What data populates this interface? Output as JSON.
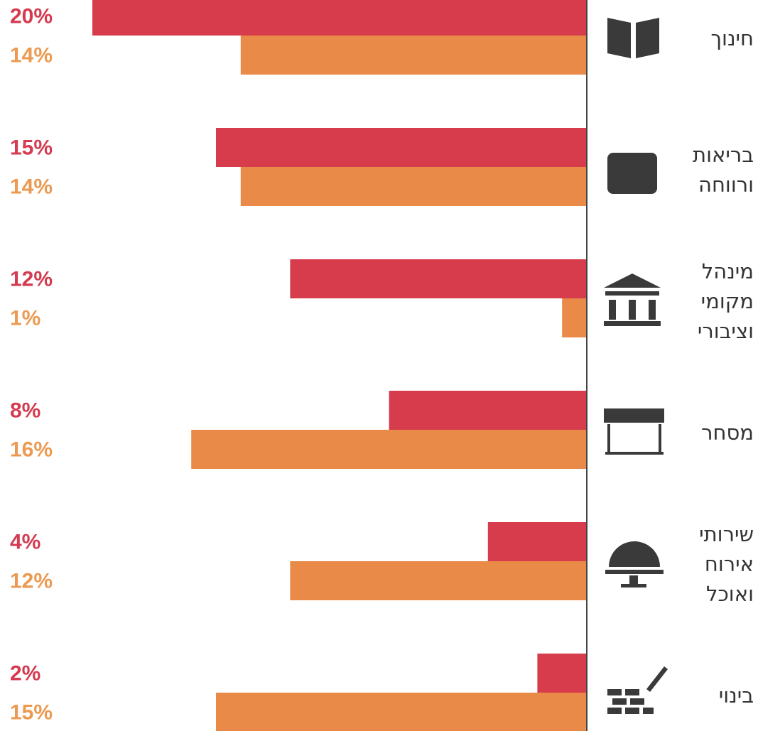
{
  "chart_data": {
    "type": "hbar",
    "categories": [
      "חינוך",
      "בריאות\nורווחה",
      "מינהל\nמקומי\nוציבורי",
      "מסחר",
      "שירותי\nאירוח\nואוכל",
      "בינוי"
    ],
    "series": [
      {
        "color": "#d73c4c",
        "label_color": "#d43a50",
        "values": [
          20,
          15,
          12,
          8,
          4,
          2
        ],
        "value_labels": [
          "20%",
          "15%",
          "12%",
          "8%",
          "4%",
          "2%"
        ]
      },
      {
        "color": "#ea8a48",
        "label_color": "#ec9a52",
        "values": [
          14,
          14,
          1,
          16,
          12,
          15
        ],
        "value_labels": [
          "14%",
          "14%",
          "1%",
          "16%",
          "12%",
          "15%"
        ]
      }
    ],
    "xlim": [
      0,
      20
    ]
  }
}
